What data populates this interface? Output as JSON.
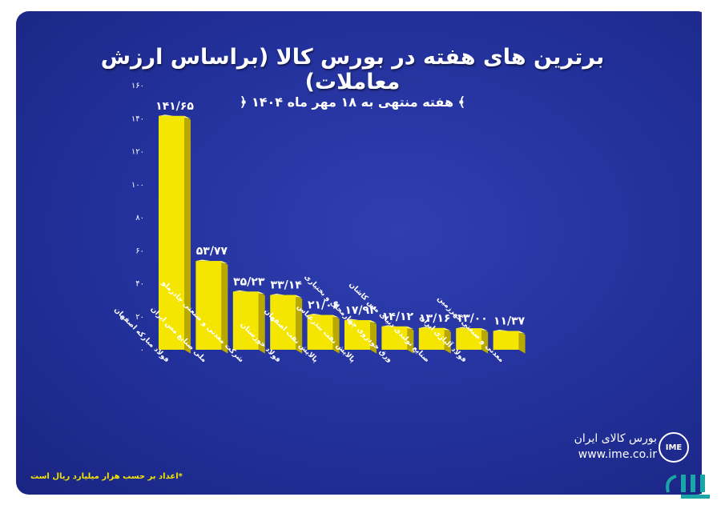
{
  "header": {
    "title": "برترین های هفته در بورس کالا (براساس ارزش معاملات)",
    "subtitle": "﴾ هفته منتهی به ۱۸ مهر ماه ۱۴۰۴ ﴿"
  },
  "chart_data": {
    "type": "bar",
    "categories": [
      "فولاد مبارکه اصفهان",
      "ملی صنایع مس ایران",
      "شرکت معدنی و صنعتی چادرملو",
      "فولاد خوزستان",
      "پالایش نفت اصفهان",
      "پالایش نفت بندرعباس",
      "ورق خودروی چهارمحال و بختیاری",
      "صنایع تولیدی دنیای مس کاشان",
      "فولاد آلیاژی ایران",
      "معدنی و صنعتی گهرزمین"
    ],
    "values": [
      141.65,
      53.77,
      35.23,
      33.14,
      21.06,
      17.92,
      14.12,
      13.16,
      13.0,
      11.37
    ],
    "value_labels": [
      "۱۴۱/۶۵",
      "۵۳/۷۷",
      "۳۵/۲۳",
      "۳۳/۱۴",
      "۲۱/۰۶",
      "۱۷/۹۲",
      "۱۴/۱۲",
      "۱۳/۱۶",
      "۱۳/۰۰",
      "۱۱/۳۷"
    ],
    "y_ticks": [
      0,
      20,
      40,
      60,
      80,
      100,
      120,
      140,
      160
    ],
    "y_tick_labels": [
      "۰",
      "۲۰",
      "۴۰",
      "۶۰",
      "۸۰",
      "۱۰۰",
      "۱۲۰",
      "۱۴۰",
      "۱۶۰"
    ],
    "ylim": [
      0,
      160
    ],
    "grid": false,
    "bar_color": "#f4e600",
    "bar_side_color": "#b8a800",
    "bar_top_color": "#fffb8a"
  },
  "footnote": "*اعداد بر حسب هزار میلیارد ریال است",
  "brand": {
    "name": "بورس کالای ایران",
    "url": "www.ime.co.ir",
    "logo_text": "IME"
  },
  "colors": {
    "background": "#22309a",
    "accent": "#f4e600"
  }
}
